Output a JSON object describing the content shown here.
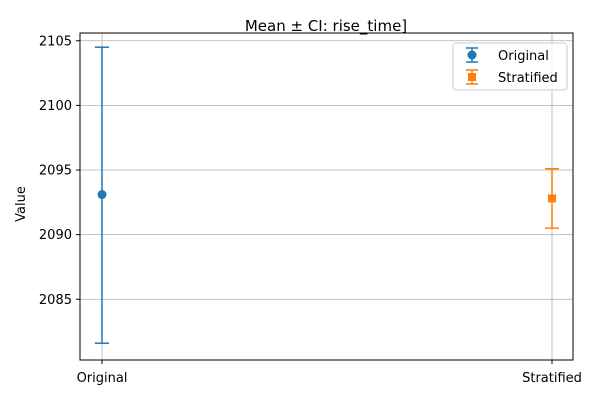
{
  "chart_data": {
    "type": "errorbar",
    "title": "Mean ± CI: rise_time]",
    "xlabel": "",
    "ylabel": "Value",
    "categories": [
      "Original",
      "Stratified"
    ],
    "ylim": [
      2080.3,
      2105.6
    ],
    "yticks": [
      2085,
      2090,
      2095,
      2100,
      2105
    ],
    "grid": true,
    "legend_position": "top-right",
    "series": [
      {
        "name": "Original",
        "marker": "circle",
        "color": "#1f77b4",
        "category": "Original",
        "mean": 2093.1,
        "ci_low": 2081.6,
        "ci_high": 2104.5
      },
      {
        "name": "Stratified",
        "marker": "square",
        "color": "#ff7f0e",
        "category": "Stratified",
        "mean": 2092.8,
        "ci_low": 2090.5,
        "ci_high": 2095.1
      }
    ]
  }
}
